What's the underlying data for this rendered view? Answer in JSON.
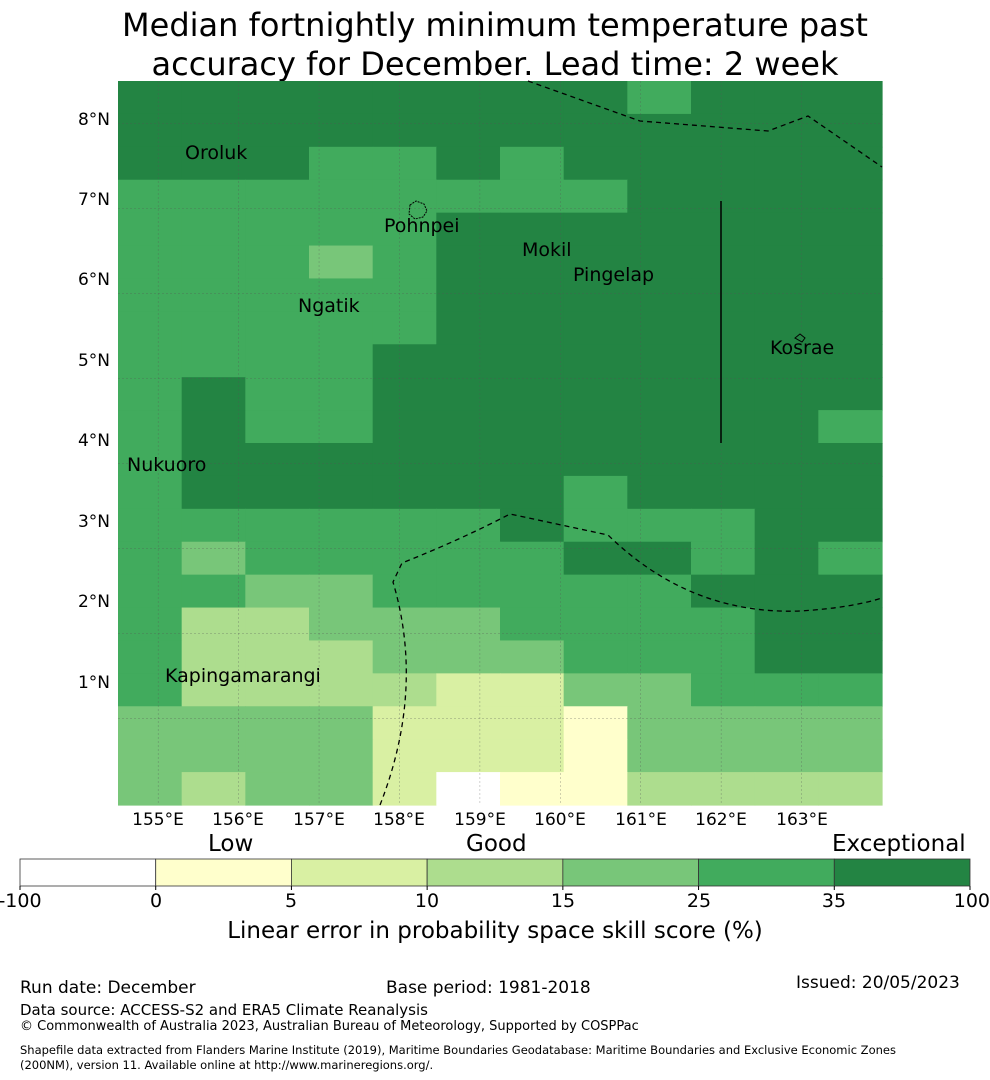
{
  "title": {
    "line1": "Median fortnightly minimum temperature past",
    "line2": "accuracy for December. Lead time: 2 week"
  },
  "axes": {
    "lat_labels": [
      "8°N",
      "7°N",
      "6°N",
      "5°N",
      "4°N",
      "3°N",
      "2°N",
      "1°N"
    ],
    "lon_labels": [
      "155°E",
      "156°E",
      "157°E",
      "158°E",
      "159°E",
      "160°E",
      "161°E",
      "162°E",
      "163°E"
    ]
  },
  "places": {
    "oroluk": "Oroluk",
    "pohnpei": "Pohnpei",
    "mokil": "Mokil",
    "pingelap": "Pingelap",
    "ngatik": "Ngatik",
    "kosrae": "Kosrae",
    "nukuoro": "Nukuoro",
    "kapingamarangi": "Kapingamarangi"
  },
  "legend": {
    "categories": {
      "low": "Low",
      "good": "Good",
      "exceptional": "Exceptional"
    },
    "ticks": [
      "-100",
      "0",
      "5",
      "10",
      "15",
      "25",
      "35",
      "100"
    ],
    "colors": [
      "#ffffff",
      "#ffffcc",
      "#d9f0a3",
      "#addd8e",
      "#78c679",
      "#41ab5d",
      "#238443"
    ],
    "title": "Linear error in probability space skill score (%)"
  },
  "footer": {
    "run_date": "Run date: December",
    "base_period": "Base period: 1981-2018",
    "issued": "Issued: 20/05/2023",
    "data_source": "Data source: ACCESS-S2 and ERA5 Climate Reanalysis",
    "copyright": "© Commonwealth of Australia 2023, Australian Bureau of Meteorology, Supported by COSPPac",
    "shapefile_line1": "Shapefile data extracted from Flanders Marine Institute (2019), Maritime Boundaries Geodatabase: Maritime Boundaries and Exclusive Economic Zones",
    "shapefile_line2": "(200NM), version 11. Available online at http://www.marineregions.org/."
  },
  "map_data": {
    "lon_range": [
      154.5,
      164.0
    ],
    "lat_range": [
      -0.02,
      8.5
    ],
    "grid_note": "skill category index per cell (0=-100..0, 1=0..5, 2=5..10, 3=10..15, 4=15..25, 5=25..35, 6=35..100)",
    "grid": [
      [
        6,
        6,
        6,
        6,
        6,
        6,
        6,
        6,
        5,
        6,
        6,
        6
      ],
      [
        6,
        6,
        6,
        6,
        6,
        6,
        6,
        6,
        6,
        6,
        6,
        6
      ],
      [
        6,
        6,
        6,
        5,
        5,
        6,
        5,
        6,
        6,
        6,
        6,
        6
      ],
      [
        5,
        5,
        5,
        5,
        5,
        5,
        5,
        5,
        6,
        6,
        6,
        6
      ],
      [
        5,
        5,
        5,
        5,
        5,
        6,
        6,
        6,
        6,
        6,
        6,
        6
      ],
      [
        5,
        5,
        5,
        4,
        5,
        6,
        6,
        6,
        6,
        6,
        6,
        6
      ],
      [
        5,
        5,
        5,
        5,
        5,
        6,
        6,
        6,
        6,
        6,
        6,
        6
      ],
      [
        5,
        5,
        5,
        5,
        5,
        6,
        6,
        6,
        6,
        6,
        6,
        6
      ],
      [
        5,
        5,
        5,
        5,
        6,
        6,
        6,
        6,
        6,
        6,
        6,
        6
      ],
      [
        5,
        6,
        5,
        5,
        6,
        6,
        6,
        6,
        6,
        6,
        6,
        6
      ],
      [
        5,
        6,
        5,
        5,
        6,
        6,
        6,
        6,
        6,
        6,
        6,
        5
      ],
      [
        5,
        6,
        6,
        6,
        6,
        6,
        6,
        6,
        6,
        6,
        6,
        6
      ],
      [
        5,
        6,
        6,
        6,
        6,
        6,
        6,
        5,
        6,
        6,
        6,
        6
      ],
      [
        5,
        5,
        5,
        5,
        5,
        5,
        6,
        5,
        5,
        5,
        6,
        6
      ],
      [
        5,
        4,
        5,
        5,
        5,
        5,
        5,
        6,
        6,
        5,
        6,
        5
      ],
      [
        5,
        5,
        4,
        4,
        5,
        5,
        5,
        5,
        5,
        6,
        6,
        6
      ],
      [
        5,
        3,
        3,
        4,
        4,
        4,
        5,
        5,
        5,
        5,
        6,
        6
      ],
      [
        5,
        3,
        3,
        3,
        4,
        4,
        4,
        5,
        5,
        5,
        6,
        6
      ],
      [
        5,
        3,
        3,
        3,
        3,
        2,
        2,
        4,
        4,
        5,
        5,
        5
      ],
      [
        4,
        4,
        4,
        4,
        2,
        2,
        2,
        1,
        4,
        4,
        4,
        4
      ],
      [
        4,
        4,
        4,
        4,
        2,
        2,
        2,
        1,
        4,
        4,
        4,
        4
      ],
      [
        4,
        3,
        4,
        4,
        2,
        0,
        1,
        1,
        3,
        3,
        3,
        3
      ]
    ]
  }
}
